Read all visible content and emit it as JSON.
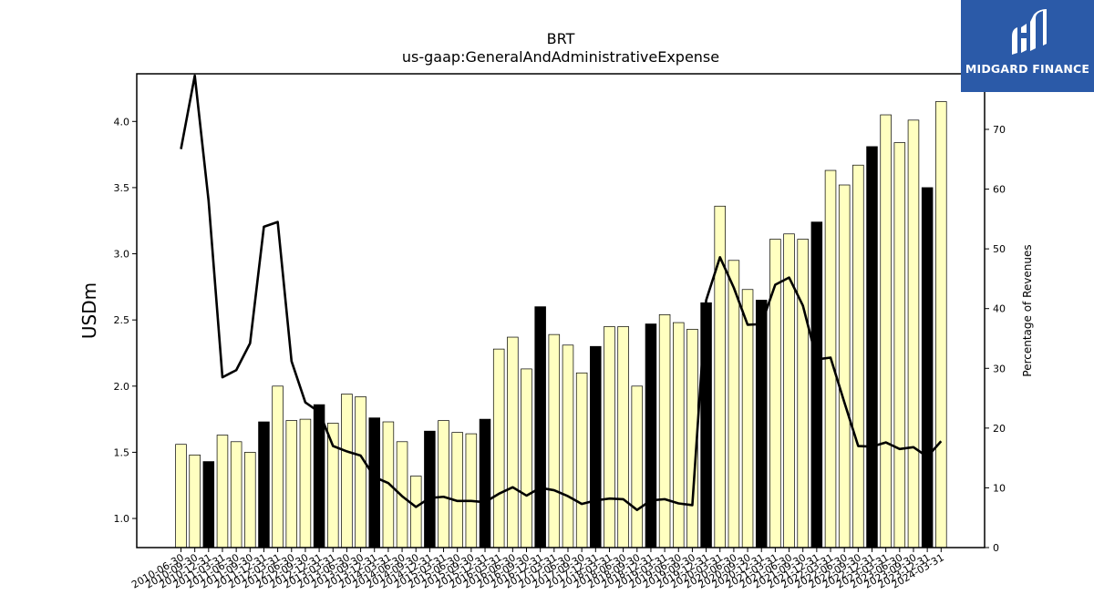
{
  "logo": {
    "text": "MIDGARD FINANCE",
    "icon": "midgard-logo-icon",
    "bg_color": "#2b5aa8"
  },
  "chart_data": {
    "type": "bar",
    "title": "BRT",
    "subtitle": "us-gaap:GeneralAndAdministrativeExpense",
    "ylabel": "USDm",
    "ylabel_right": "Percentage of Revenues",
    "ylim": [
      0.78,
      4.36
    ],
    "ylim_right": [
      0,
      79.3
    ],
    "yticks": [
      1.0,
      1.5,
      2.0,
      2.5,
      3.0,
      3.5,
      4.0
    ],
    "yticks_right": [
      0,
      10,
      20,
      30,
      40,
      50,
      60,
      70
    ],
    "colors": {
      "quarter": "#ffffc0",
      "year_end": "#000000",
      "line": "#000000"
    },
    "categories": [
      "2010-06-30",
      "2010-09-30",
      "2010-12-31",
      "2011-03-31",
      "2011-06-30",
      "2011-09-30",
      "2011-12-31",
      "2012-03-31",
      "2012-06-30",
      "2012-09-30",
      "2012-12-31",
      "2013-03-31",
      "2013-06-30",
      "2013-09-30",
      "2013-12-31",
      "2014-03-31",
      "2014-06-30",
      "2014-09-30",
      "2014-12-31",
      "2015-03-31",
      "2015-06-30",
      "2015-09-30",
      "2015-12-31",
      "2016-03-31",
      "2016-06-30",
      "2016-09-30",
      "2016-12-31",
      "2017-03-31",
      "2017-06-30",
      "2017-09-30",
      "2017-12-31",
      "2018-03-31",
      "2018-06-30",
      "2018-09-30",
      "2018-12-31",
      "2019-03-31",
      "2019-06-30",
      "2019-09-30",
      "2019-12-31",
      "2020-03-31",
      "2020-06-30",
      "2020-09-30",
      "2020-12-31",
      "2021-03-31",
      "2021-06-30",
      "2021-09-30",
      "2021-12-31",
      "2022-03-31",
      "2022-06-30",
      "2022-09-30",
      "2022-12-31",
      "2023-03-31",
      "2023-06-30",
      "2023-09-30",
      "2023-12-31",
      "2024-03-31"
    ],
    "xtick_labels": [
      "2010-06-30",
      "2010-09-30",
      "2010-12-31",
      "2011-03-31",
      "2011-06-30",
      "2011-09-30",
      "2011-12-31",
      "2012-03-31",
      "2012-06-30",
      "2012-09-30",
      "2012-12-31",
      "2013-03-31",
      "2013-06-30",
      "2013-09-30",
      "2013-12-31",
      "2014-03-31",
      "2014-06-30",
      "2014-09-30",
      "2014-12-31",
      "2015-03-31",
      "2015-06-30",
      "2015-09-30",
      "2015-12-31",
      "2016-03-31",
      "2016-06-30",
      "2016-09-30",
      "2016-12-31",
      "2017-03-31",
      "2017-06-30",
      "2017-09-30",
      "2017-12-31",
      "2018-03-31",
      "2018-06-30",
      "2018-09-30",
      "2018-12-31",
      "2019-03-31",
      "2019-06-30",
      "2019-09-30",
      "2019-12-31",
      "2020-03-31",
      "2020-06-30",
      "2020-09-30",
      "2020-12-31",
      "2021-03-31",
      "2021-06-30",
      "2021-09-30",
      "2021-12-31",
      "2022-03-31",
      "2022-06-30",
      "2022-09-30",
      "2022-12-31",
      "2023-03-31",
      "2023-06-30",
      "2023-09-30",
      "2023-12-31",
      "2024-03-31"
    ],
    "series": [
      {
        "type": "bar",
        "values": [
          1.56,
          1.48,
          1.43,
          1.63,
          1.58,
          1.5,
          1.73,
          2.0,
          1.74,
          1.75,
          1.86,
          1.72,
          1.94,
          1.92,
          1.76,
          1.73,
          1.58,
          1.32,
          1.66,
          1.74,
          1.65,
          1.64,
          1.75,
          2.28,
          2.37,
          2.13,
          2.6,
          2.39,
          2.31,
          2.1,
          2.3,
          2.45,
          2.45,
          2.0,
          2.47,
          2.54,
          2.48,
          2.43,
          2.63,
          3.36,
          2.95,
          2.73,
          2.65,
          3.11,
          3.15,
          3.11,
          3.24,
          3.63,
          3.52,
          3.67,
          3.81,
          4.05,
          3.84,
          4.01,
          3.5,
          4.15
        ],
        "year_end": [
          false,
          false,
          true,
          false,
          false,
          false,
          true,
          false,
          false,
          false,
          true,
          false,
          false,
          false,
          true,
          false,
          false,
          false,
          true,
          false,
          false,
          false,
          true,
          false,
          false,
          false,
          true,
          false,
          false,
          false,
          true,
          false,
          false,
          false,
          true,
          false,
          false,
          false,
          true,
          false,
          false,
          false,
          true,
          false,
          false,
          false,
          true,
          false,
          false,
          false,
          true,
          false,
          false,
          false,
          true,
          false
        ]
      },
      {
        "type": "line",
        "axis": "right",
        "values": [
          66.7,
          79.0,
          58.0,
          28.5,
          29.7,
          34.2,
          53.7,
          54.5,
          31.2,
          24.3,
          22.7,
          17.0,
          16.1,
          15.4,
          11.8,
          10.8,
          8.6,
          6.8,
          8.3,
          8.5,
          7.8,
          7.8,
          7.6,
          9.0,
          10.1,
          8.7,
          10.0,
          9.6,
          8.6,
          7.3,
          7.9,
          8.2,
          8.1,
          6.3,
          7.9,
          8.1,
          7.4,
          7.1,
          41.4,
          48.6,
          43.5,
          37.3,
          37.4,
          44.0,
          45.2,
          40.5,
          31.5,
          31.8,
          24.3,
          17.0,
          16.9,
          17.6,
          16.5,
          16.8,
          15.2,
          17.8
        ]
      }
    ]
  }
}
